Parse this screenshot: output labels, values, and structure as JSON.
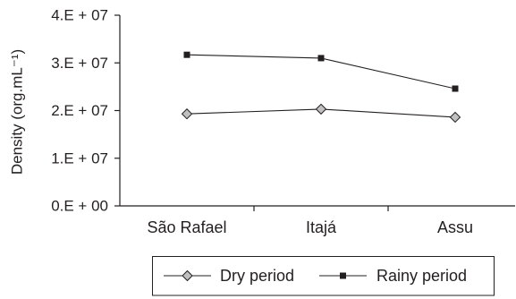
{
  "chart_data": {
    "type": "line",
    "categories": [
      "São Rafael",
      "Itajá",
      "Assu"
    ],
    "series": [
      {
        "name": "Dry period",
        "values": [
          19300000,
          20300000,
          18600000
        ],
        "marker": "diamond",
        "color": "#231f20",
        "marker_fill": "#c0c0c0"
      },
      {
        "name": "Rainy period",
        "values": [
          31700000,
          31000000,
          24600000
        ],
        "marker": "square",
        "color": "#231f20",
        "marker_fill": "#231f20"
      }
    ],
    "ylabel": "Density (org.mL⁻¹)",
    "ylim": [
      0,
      40000000
    ],
    "yticks": [
      0,
      10000000,
      20000000,
      30000000,
      40000000
    ],
    "ytick_labels": [
      "0.E + 00",
      "1.E + 07",
      "2.E + 07",
      "3.E + 07",
      "4.E + 07"
    ],
    "grid": false,
    "legend": "bottom"
  }
}
